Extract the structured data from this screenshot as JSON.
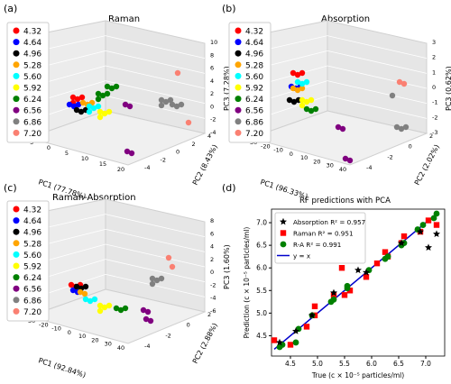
{
  "panel_labels": [
    "(a)",
    "(b)",
    "(c)",
    "(d)"
  ],
  "legend_values": [
    "4.32",
    "4.64",
    "4.96",
    "5.28",
    "5.60",
    "5.92",
    "6.24",
    "6.56",
    "6.86",
    "7.20"
  ],
  "legend_colors": [
    "#ff0000",
    "#0000ff",
    "#000000",
    "#ffa500",
    "#00ffff",
    "#ffff00",
    "#008000",
    "#800080",
    "#808080",
    "#fa8072"
  ],
  "chart_data": [
    {
      "type": "scatter3d",
      "title": "Raman",
      "xlabel": "PC1 (77.78%)",
      "ylabel": "PC2 (8.43%)",
      "zlabel": "PC3 (7.28%)",
      "xticks": [
        "-5",
        "0",
        "5",
        "10",
        "15",
        "20"
      ],
      "yticks": [
        "-4",
        "-2",
        "0",
        "2",
        "4"
      ],
      "zticks": [
        "-4",
        "-2",
        "0",
        "2",
        "4",
        "6",
        "8",
        "10"
      ]
    },
    {
      "type": "scatter3d",
      "title": "Absorption",
      "xlabel": "PC1 (96.33%)",
      "ylabel": "PC2 (2.02%)",
      "zlabel": "PC3 (0.62%)",
      "xticks": [
        "-30",
        "-20",
        "-10",
        "0",
        "10",
        "20",
        "30",
        "40"
      ],
      "yticks": [
        "-4",
        "-2",
        "0",
        "2"
      ],
      "zticks": [
        "-3",
        "-2",
        "-1",
        "0",
        "1",
        "2",
        "3"
      ]
    },
    {
      "type": "scatter3d",
      "title": "Raman-Absorption",
      "xlabel": "PC1 (92.84%)",
      "ylabel": "PC2 (2.88%)",
      "zlabel": "PC3 (1.60%)",
      "xticks": [
        "-30",
        "-20",
        "-10",
        "0",
        "10",
        "20",
        "30",
        "40"
      ],
      "yticks": [
        "-4",
        "-2",
        "0",
        "2"
      ],
      "zticks": [
        "-6",
        "-4",
        "-2",
        "0",
        "2",
        "4",
        "6",
        "8"
      ]
    },
    {
      "type": "scatter",
      "title": "RF predictions with PCA",
      "xlabel": "True (c × 10⁻⁵ particles/ml)",
      "ylabel": "Prediction (c × 10⁻⁵ particles/ml)",
      "xlim": [
        4.15,
        7.35
      ],
      "ylim": [
        4.05,
        7.3
      ],
      "xticks": [
        4.5,
        5.0,
        5.5,
        6.0,
        6.5,
        7.0
      ],
      "yticks": [
        4.5,
        5.0,
        5.5,
        6.0,
        6.5,
        7.0
      ],
      "xtick_labels": [
        "4.5",
        "5.0",
        "5.5",
        "6.0",
        "6.5",
        "7.0"
      ],
      "ytick_labels": [
        "4.5",
        "5.0",
        "5.5",
        "6.0",
        "6.5",
        "7.0"
      ],
      "legend_position": "upper-left",
      "series": [
        {
          "name": "Absorption R² = 0.957",
          "color": "#000000",
          "marker": "star",
          "x": [
            4.3,
            4.6,
            4.9,
            5.3,
            5.75,
            5.9,
            6.55,
            6.9,
            7.05,
            7.2
          ],
          "y": [
            4.35,
            4.6,
            4.95,
            5.45,
            5.95,
            5.9,
            6.55,
            6.8,
            6.45,
            6.75
          ]
        },
        {
          "name": "Raman R² = 0.951",
          "color": "#ff0000",
          "marker": "square",
          "x": [
            4.2,
            4.5,
            4.8,
            4.95,
            4.95,
            5.3,
            5.45,
            5.5,
            5.6,
            5.9,
            6.1,
            6.25,
            6.3,
            6.55,
            6.6,
            6.9,
            7.05,
            7.2
          ],
          "y": [
            4.4,
            4.3,
            4.7,
            5.15,
            4.95,
            5.4,
            6.0,
            5.4,
            5.5,
            5.8,
            6.1,
            6.35,
            6.25,
            6.55,
            6.7,
            6.8,
            7.05,
            6.95
          ]
        },
        {
          "name": "R-A R² = 0.991",
          "color": "#008000",
          "marker": "circle",
          "x": [
            4.3,
            4.35,
            4.6,
            4.65,
            4.9,
            5.25,
            5.3,
            5.55,
            5.55,
            5.95,
            6.25,
            6.3,
            6.55,
            6.6,
            6.85,
            6.95,
            7.15,
            7.2
          ],
          "y": [
            4.25,
            4.3,
            4.35,
            4.65,
            4.95,
            5.25,
            5.3,
            5.55,
            5.6,
            5.95,
            6.2,
            6.25,
            6.5,
            6.55,
            6.85,
            6.95,
            7.1,
            7.2
          ]
        },
        {
          "name": "y = x",
          "color": "#0000cc",
          "marker": "line",
          "x": [
            4.2,
            7.2
          ],
          "y": [
            4.2,
            7.2
          ]
        }
      ]
    }
  ]
}
